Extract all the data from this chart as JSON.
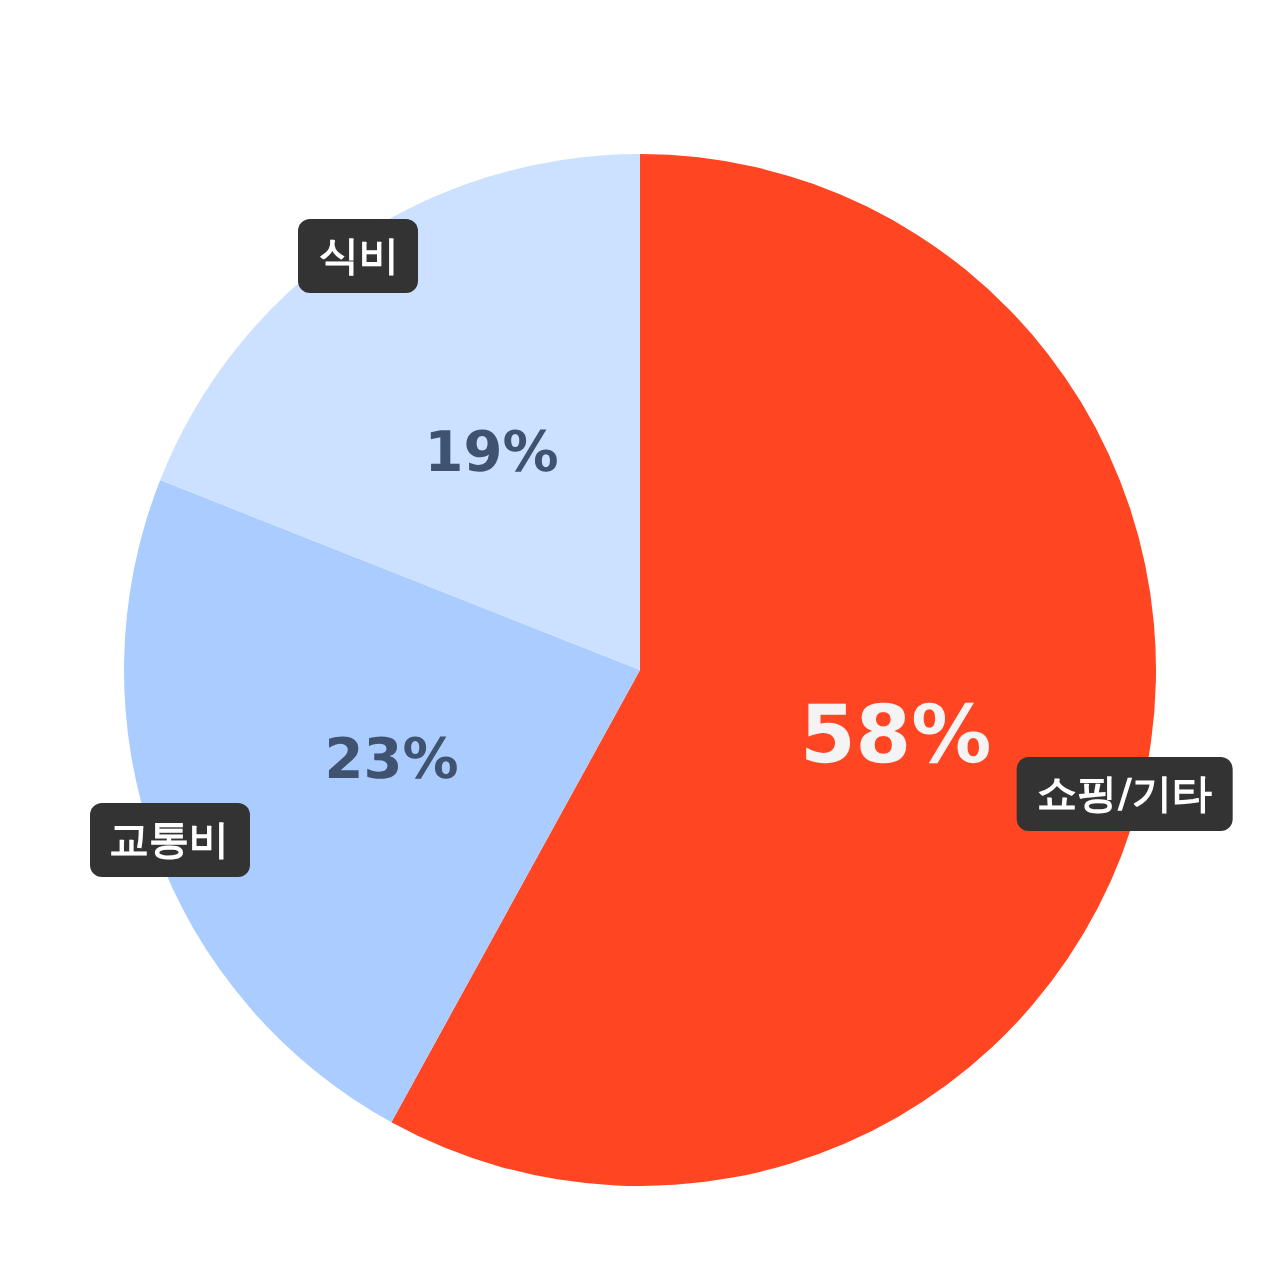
{
  "chart_data": {
    "type": "pie",
    "categories": [
      "쇼핑/기타",
      "교통비",
      "식비"
    ],
    "values": [
      58,
      23,
      19
    ],
    "value_labels": [
      "58%",
      "23%",
      "19%"
    ],
    "colors": [
      "#ff4521",
      "#aaccff",
      "#cce0ff"
    ],
    "legend": false
  }
}
